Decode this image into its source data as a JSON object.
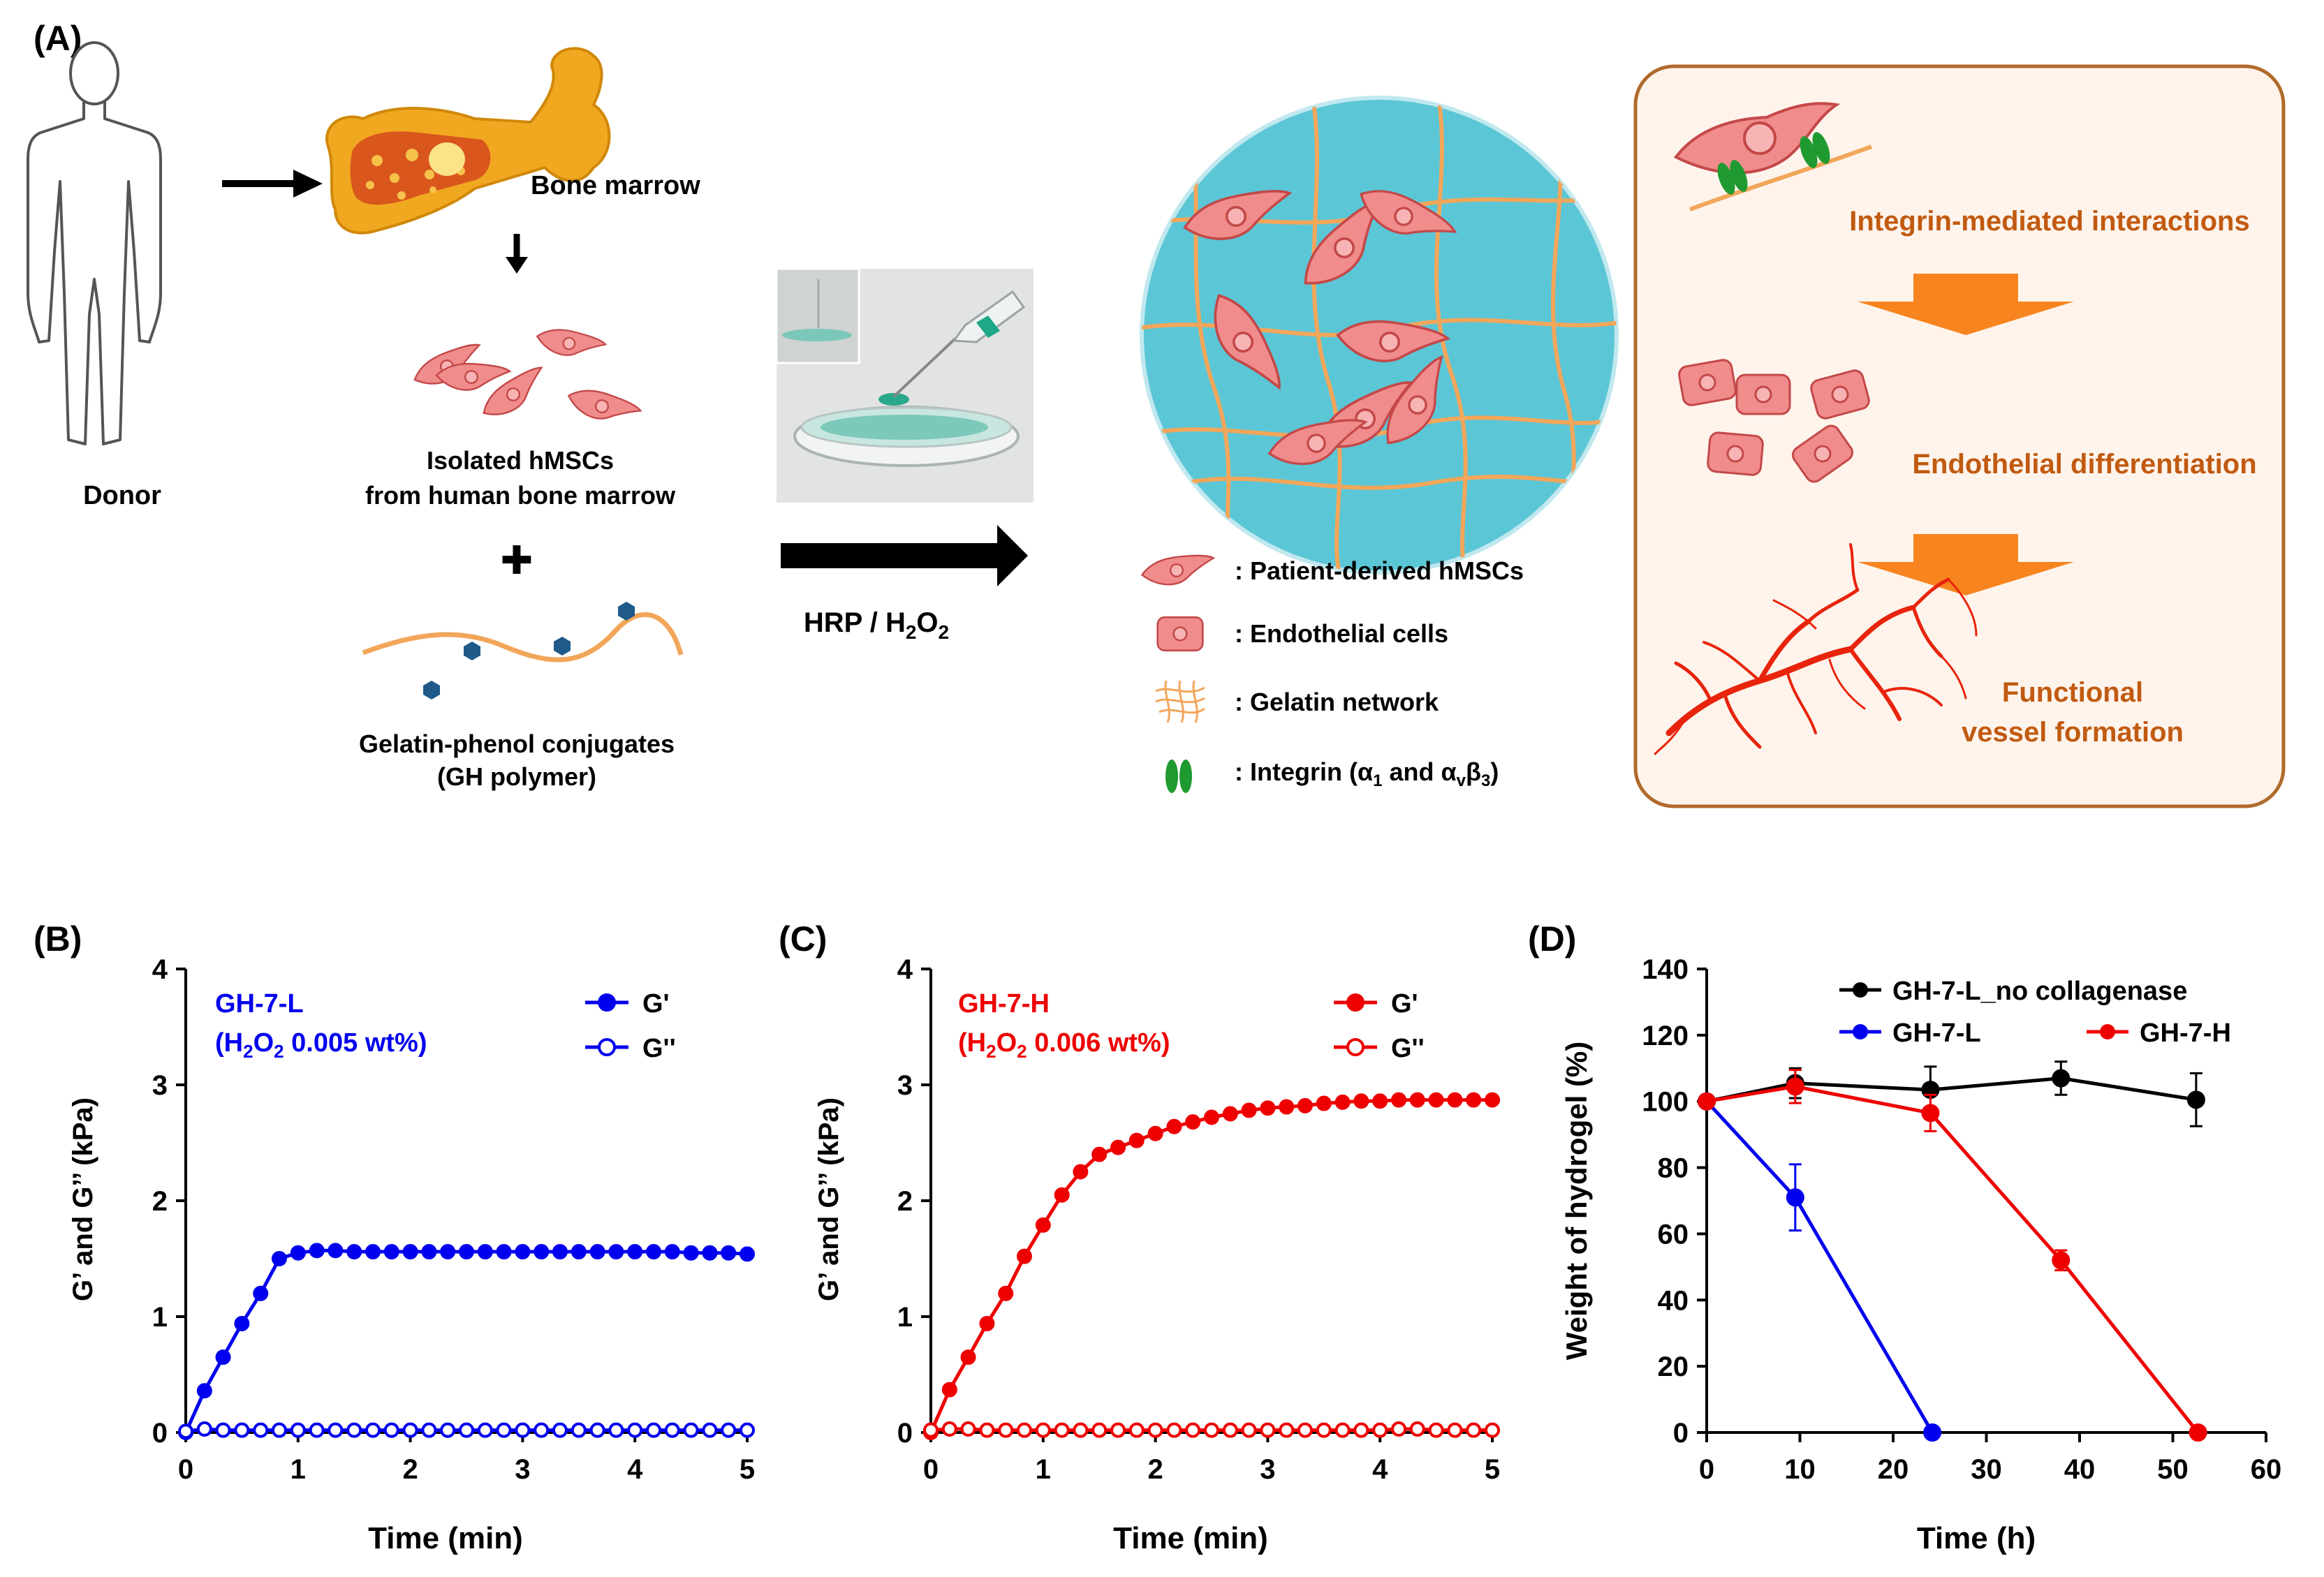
{
  "panel_a": {
    "label": "(A)",
    "donor_label": "Donor",
    "bone_label": "Bone marrow",
    "hmsc_label_1": "Isolated hMSCs",
    "hmsc_label_2": "from human bone marrow",
    "plus_sign": "✚",
    "polymer_label_1": "Gelatin-phenol conjugates",
    "polymer_label_2": "(GH polymer)",
    "reaction": {
      "prefix": "HRP / H",
      "sub1": "2",
      "mid": "O",
      "sub2": "2"
    },
    "legend": {
      "hmscs": ": Patient-derived hMSCs",
      "endothelial": ": Endothelial cells",
      "gelatin": ": Gelatin network",
      "integrin": {
        "prefix": ": Integrin (α",
        "sub1": "1",
        "mid": " and α",
        "sub2": "v",
        "sub3": "β",
        "sub4": "3",
        "suffix": ")"
      }
    },
    "box": {
      "step1": "Integrin-mediated interactions",
      "step2": "Endothelial differentiation",
      "step3_line1": "Functional",
      "step3_line2": "vessel formation"
    }
  },
  "colors": {
    "blue": "#0000ee",
    "red": "#ee0000",
    "black": "#000000",
    "box_fill": "#fff4ec",
    "box_border": "#b06a2a",
    "box_text": "#c15a10",
    "orange_arrow": "#f7841e",
    "gel_fill": "#5bc6d6",
    "fiber": "#f2a65a",
    "cell_fill": "#f08c8c",
    "cell_stroke": "#c44848",
    "integrin": "#1f9a30",
    "vessel": "#e8240c",
    "phenol": "#1f5a8a"
  },
  "chart_data": [
    {
      "panel_label": "(B)",
      "type": "line",
      "annotation_line1": "GH-7-L",
      "annotation_line2": {
        "prefix": "(H",
        "sub1": "2",
        "mid": "O",
        "sub2": "2",
        "suffix": " 0.005 wt%)"
      },
      "xlabel": "Time (min)",
      "ylabel": "G’ and G’’ (kPa)",
      "xlim": [
        0,
        5
      ],
      "ylim": [
        0,
        4
      ],
      "xticks": [
        "0",
        "1",
        "2",
        "3",
        "4",
        "5"
      ],
      "yticks": [
        "0",
        "1",
        "2",
        "3",
        "4"
      ],
      "series": [
        {
          "name": "G'",
          "filled": true,
          "x": [
            0,
            0.167,
            0.333,
            0.5,
            0.667,
            0.833,
            1.0,
            1.167,
            1.333,
            1.5,
            1.667,
            1.833,
            2.0,
            2.167,
            2.333,
            2.5,
            2.667,
            2.833,
            3.0,
            3.167,
            3.333,
            3.5,
            3.667,
            3.833,
            4.0,
            4.167,
            4.333,
            4.5,
            4.667,
            4.833,
            5.0
          ],
          "y": [
            0.0,
            0.36,
            0.65,
            0.94,
            1.2,
            1.5,
            1.55,
            1.57,
            1.57,
            1.56,
            1.56,
            1.56,
            1.56,
            1.56,
            1.56,
            1.56,
            1.56,
            1.56,
            1.56,
            1.56,
            1.56,
            1.56,
            1.56,
            1.56,
            1.56,
            1.56,
            1.56,
            1.55,
            1.55,
            1.55,
            1.54
          ]
        },
        {
          "name": "G''",
          "filled": false,
          "x": [
            0,
            0.167,
            0.333,
            0.5,
            0.667,
            0.833,
            1.0,
            1.167,
            1.333,
            1.5,
            1.667,
            1.833,
            2.0,
            2.167,
            2.333,
            2.5,
            2.667,
            2.833,
            3.0,
            3.167,
            3.333,
            3.5,
            3.667,
            3.833,
            4.0,
            4.167,
            4.333,
            4.5,
            4.667,
            4.833,
            5.0
          ],
          "y": [
            0.01,
            0.03,
            0.02,
            0.02,
            0.02,
            0.02,
            0.02,
            0.02,
            0.02,
            0.02,
            0.02,
            0.02,
            0.02,
            0.02,
            0.02,
            0.02,
            0.02,
            0.02,
            0.02,
            0.02,
            0.02,
            0.02,
            0.02,
            0.02,
            0.02,
            0.02,
            0.02,
            0.02,
            0.02,
            0.02,
            0.02
          ]
        }
      ]
    },
    {
      "panel_label": "(C)",
      "type": "line",
      "annotation_line1": "GH-7-H",
      "annotation_line2": {
        "prefix": "(H",
        "sub1": "2",
        "mid": "O",
        "sub2": "2",
        "suffix": " 0.006 wt%)"
      },
      "xlabel": "Time (min)",
      "ylabel": "G’ and G’’ (kPa)",
      "xlim": [
        0,
        5
      ],
      "ylim": [
        0,
        4
      ],
      "xticks": [
        "0",
        "1",
        "2",
        "3",
        "4",
        "5"
      ],
      "yticks": [
        "0",
        "1",
        "2",
        "3",
        "4"
      ],
      "series": [
        {
          "name": "G'",
          "filled": true,
          "x": [
            0,
            0.167,
            0.333,
            0.5,
            0.667,
            0.833,
            1.0,
            1.167,
            1.333,
            1.5,
            1.667,
            1.833,
            2.0,
            2.167,
            2.333,
            2.5,
            2.667,
            2.833,
            3.0,
            3.167,
            3.333,
            3.5,
            3.667,
            3.833,
            4.0,
            4.167,
            4.333,
            4.5,
            4.667,
            4.833,
            5.0
          ],
          "y": [
            0.0,
            0.37,
            0.65,
            0.94,
            1.2,
            1.52,
            1.79,
            2.05,
            2.25,
            2.4,
            2.46,
            2.52,
            2.58,
            2.64,
            2.68,
            2.72,
            2.75,
            2.78,
            2.8,
            2.81,
            2.82,
            2.84,
            2.85,
            2.86,
            2.86,
            2.87,
            2.87,
            2.87,
            2.87,
            2.87,
            2.87
          ]
        },
        {
          "name": "G''",
          "filled": false,
          "x": [
            0,
            0.167,
            0.333,
            0.5,
            0.667,
            0.833,
            1.0,
            1.167,
            1.333,
            1.5,
            1.667,
            1.833,
            2.0,
            2.167,
            2.333,
            2.5,
            2.667,
            2.833,
            3.0,
            3.167,
            3.333,
            3.5,
            3.667,
            3.833,
            4.0,
            4.167,
            4.333,
            4.5,
            4.667,
            4.833,
            5.0
          ],
          "y": [
            0.02,
            0.03,
            0.03,
            0.02,
            0.02,
            0.02,
            0.02,
            0.02,
            0.02,
            0.02,
            0.02,
            0.02,
            0.02,
            0.02,
            0.02,
            0.02,
            0.02,
            0.02,
            0.02,
            0.02,
            0.02,
            0.02,
            0.02,
            0.02,
            0.02,
            0.03,
            0.03,
            0.02,
            0.02,
            0.02,
            0.02
          ]
        }
      ]
    },
    {
      "panel_label": "(D)",
      "type": "line",
      "xlabel": "Time (h)",
      "ylabel": "Weight of hydrogel (%)",
      "xlim": [
        0,
        60
      ],
      "ylim": [
        0,
        140
      ],
      "xticks": [
        "0",
        "10",
        "20",
        "30",
        "40",
        "50",
        "60"
      ],
      "yticks": [
        "0",
        "20",
        "40",
        "60",
        "80",
        "100",
        "120",
        "140"
      ],
      "series": [
        {
          "name": "GH-7-L_no collagenase",
          "color": "black",
          "x": [
            0,
            9.5,
            24,
            38,
            52.5
          ],
          "y": [
            100,
            105.5,
            103.5,
            107,
            100.5
          ],
          "err": [
            0,
            4.5,
            7,
            5,
            8
          ]
        },
        {
          "name": "GH-7-L",
          "color": "blue",
          "x": [
            0,
            9.5,
            24.2
          ],
          "y": [
            100,
            71,
            0
          ],
          "err": [
            0,
            10,
            0
          ]
        },
        {
          "name": "GH-7-H",
          "color": "red",
          "x": [
            0,
            9.5,
            24,
            38,
            52.7
          ],
          "y": [
            100,
            104.5,
            96.5,
            52,
            0
          ],
          "err": [
            0,
            5,
            5.5,
            3,
            0
          ]
        }
      ]
    }
  ]
}
